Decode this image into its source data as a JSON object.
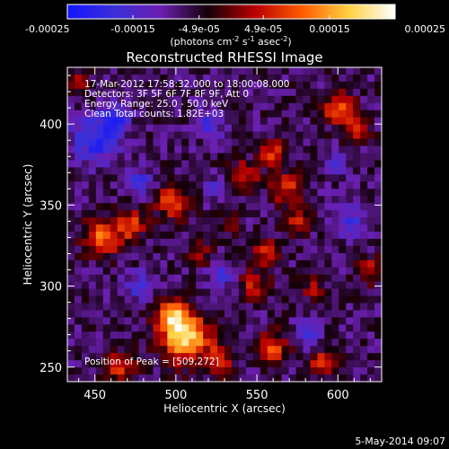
{
  "chart_data": {
    "type": "heatmap",
    "title": "Reconstructed RHESSI Image",
    "xlabel": "Heliocentric X (arcsec)",
    "ylabel": "Heliocentric Y (arcsec)",
    "xlim": [
      433,
      627
    ],
    "ylim": [
      241,
      435
    ],
    "xticks": [
      450,
      500,
      550,
      600
    ],
    "yticks": [
      250,
      300,
      350,
      400
    ],
    "colorbar": {
      "vmin": -0.00025,
      "vmax": 0.00025,
      "ticks": [
        "-0.00025",
        "-0.00015",
        "-4.9e-05",
        "4.9e-05",
        "0.00015",
        "0.00025"
      ],
      "tick_values": [
        -0.00025,
        -0.00015,
        -4.9e-05,
        4.9e-05,
        0.00015,
        0.00025
      ],
      "unit_parts": [
        "(photons cm",
        "-2",
        " s",
        "-1",
        " asec",
        "-2",
        ")"
      ],
      "colors": [
        "#1414ff",
        "#3b2fd8",
        "#6a1fb0",
        "#140008",
        "#b80000",
        "#ff5a00",
        "#ffd040",
        "#ffffff"
      ]
    },
    "annotations": [
      "17-Mar-2012 17:58:32.000 to 18:00:08.000",
      "Detectors: 3F 5F 6F 7F 8F 9F, Att 0",
      "Energy Range: 25.0 - 50.0 keV",
      "Clean     Total counts: 1.82E+03"
    ],
    "peak_label": "Position of Peak = [509,272]",
    "peak": [
      509,
      272
    ],
    "sources": [
      {
        "x": 506,
        "y": 268,
        "r": 16,
        "v": 0.00025
      },
      {
        "x": 498,
        "y": 281,
        "r": 10,
        "v": 0.0002
      },
      {
        "x": 455,
        "y": 330,
        "r": 12,
        "v": 0.00018
      },
      {
        "x": 472,
        "y": 338,
        "r": 9,
        "v": 0.00016
      },
      {
        "x": 498,
        "y": 352,
        "r": 11,
        "v": 0.00016
      },
      {
        "x": 542,
        "y": 368,
        "r": 9,
        "v": 0.00014
      },
      {
        "x": 560,
        "y": 382,
        "r": 8,
        "v": 0.00015
      },
      {
        "x": 568,
        "y": 360,
        "r": 10,
        "v": 0.00014
      },
      {
        "x": 575,
        "y": 340,
        "r": 8,
        "v": 0.00013
      },
      {
        "x": 556,
        "y": 320,
        "r": 9,
        "v": 0.00013
      },
      {
        "x": 548,
        "y": 300,
        "r": 9,
        "v": 0.00012
      },
      {
        "x": 560,
        "y": 262,
        "r": 10,
        "v": 0.00015
      },
      {
        "x": 590,
        "y": 252,
        "r": 9,
        "v": 0.00013
      },
      {
        "x": 600,
        "y": 410,
        "r": 10,
        "v": 0.00016
      },
      {
        "x": 612,
        "y": 398,
        "r": 8,
        "v": 0.00014
      },
      {
        "x": 620,
        "y": 310,
        "r": 8,
        "v": 0.00012
      },
      {
        "x": 465,
        "y": 250,
        "r": 10,
        "v": 0.00013
      },
      {
        "x": 528,
        "y": 255,
        "r": 9,
        "v": 0.00012
      },
      {
        "x": 515,
        "y": 320,
        "r": 7,
        "v": 0.0001
      },
      {
        "x": 440,
        "y": 425,
        "r": 7,
        "v": 0.0001
      },
      {
        "x": 585,
        "y": 298,
        "r": 7,
        "v": 0.0001
      },
      {
        "x": 535,
        "y": 338,
        "r": 6,
        "v": 9e-05
      }
    ],
    "sinks": [
      {
        "x": 450,
        "y": 390,
        "r": 15,
        "v": -0.00014
      },
      {
        "x": 462,
        "y": 405,
        "r": 10,
        "v": -0.00012
      },
      {
        "x": 478,
        "y": 365,
        "r": 8,
        "v": -0.0001
      },
      {
        "x": 520,
        "y": 400,
        "r": 9,
        "v": -0.0001
      },
      {
        "x": 528,
        "y": 305,
        "r": 8,
        "v": -0.0001
      },
      {
        "x": 478,
        "y": 300,
        "r": 9,
        "v": -0.0001
      },
      {
        "x": 580,
        "y": 270,
        "r": 8,
        "v": -0.0001
      },
      {
        "x": 608,
        "y": 340,
        "r": 9,
        "v": -0.00012
      },
      {
        "x": 525,
        "y": 360,
        "r": 7,
        "v": -9e-05
      },
      {
        "x": 600,
        "y": 375,
        "r": 7,
        "v": -9e-05
      }
    ]
  },
  "footer": {
    "date": "5-May-2014 09:07"
  }
}
